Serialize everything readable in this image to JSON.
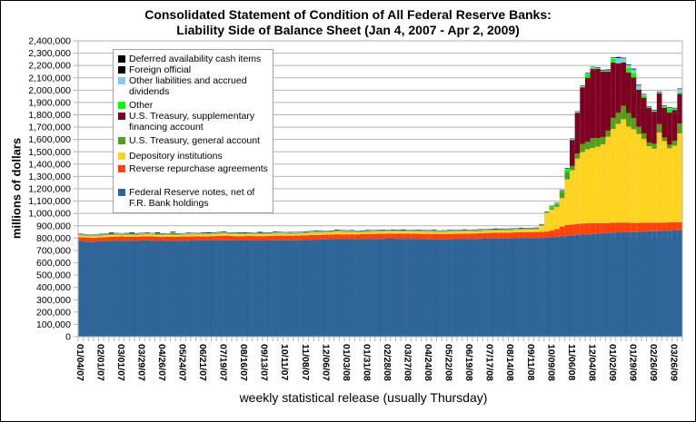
{
  "chart_data": {
    "type": "bar",
    "stacked": true,
    "title": "Consolidated Statement of Condition of All Federal Reserve Banks:",
    "subtitle": "Liability Side of Balance Sheet (Jan 4, 2007 - Apr 2, 2009)",
    "xlabel": "weekly statistical release (usually Thursday)",
    "ylabel": "millions of dollars",
    "ylim": [
      0,
      2400000
    ],
    "ytick_step": 100000,
    "yticks": [
      "0",
      "100,000",
      "200,000",
      "300,000",
      "400,000",
      "500,000",
      "600,000",
      "700,000",
      "800,000",
      "900,000",
      "1,000,000",
      "1,100,000",
      "1,200,000",
      "1,300,000",
      "1,400,000",
      "1,500,000",
      "1,600,000",
      "1,700,000",
      "1,800,000",
      "1,900,000",
      "2,000,000",
      "2,100,000",
      "2,200,000",
      "2,300,000",
      "2,400,000"
    ],
    "grid": true,
    "legend_position": "top-left",
    "xtick_labels": [
      "01/04/07",
      "02/01/07",
      "03/01/07",
      "03/29/07",
      "04/26/07",
      "05/24/07",
      "06/21/07",
      "07/19/07",
      "08/16/07",
      "09/13/07",
      "10/11/07",
      "11/08/07",
      "12/06/07",
      "01/03/08",
      "01/31/08",
      "02/28/08",
      "03/27/08",
      "04/24/08",
      "05/22/08",
      "06/19/08",
      "07/17/08",
      "08/14/08",
      "09/11/08",
      "10/09/08",
      "11/06/08",
      "12/04/08",
      "01/02/09",
      "01/29/09",
      "02/26/09",
      "03/26/09"
    ],
    "xtick_every": 4,
    "n_weeks": 118,
    "series": [
      {
        "name": "Federal Reserve notes, net of F.R. Bank holdings",
        "color": "#2f6699",
        "values": [
          777000,
          772000,
          768000,
          770000,
          774000,
          775000,
          776000,
          777000,
          778000,
          778000,
          778000,
          779000,
          780000,
          781000,
          779000,
          777000,
          777000,
          776000,
          777000,
          776000,
          778000,
          779000,
          780000,
          781000,
          780000,
          780000,
          781000,
          782000,
          783000,
          782000,
          781000,
          780000,
          781000,
          781000,
          780000,
          780000,
          780000,
          781000,
          782000,
          783000,
          782000,
          782000,
          782000,
          783000,
          784000,
          786000,
          787000,
          788000,
          790000,
          792000,
          792000,
          791000,
          791000,
          791000,
          790000,
          791000,
          792000,
          793000,
          793000,
          793000,
          795000,
          795000,
          794000,
          794000,
          794000,
          793000,
          792000,
          791000,
          790000,
          790000,
          789000,
          789000,
          790000,
          791000,
          791000,
          792000,
          792000,
          793000,
          794000,
          795000,
          796000,
          797000,
          797000,
          798000,
          798000,
          799000,
          800000,
          800000,
          800000,
          800000,
          801000,
          803000,
          806000,
          809000,
          814000,
          818000,
          822000,
          826000,
          828000,
          830000,
          833000,
          836000,
          838000,
          842000,
          845000,
          847000,
          847000,
          848000,
          849000,
          851000,
          853000,
          855000,
          856000,
          857000,
          858000,
          860000,
          862000,
          863000
        ]
      },
      {
        "name": "Reverse repurchase agreements",
        "color": "#ff420e",
        "values": [
          30000,
          33000,
          34000,
          32000,
          32000,
          33000,
          34000,
          35000,
          35000,
          34000,
          34000,
          33000,
          34000,
          34000,
          35000,
          34000,
          33000,
          34000,
          34000,
          35000,
          35000,
          34000,
          34000,
          34000,
          33000,
          34000,
          35000,
          36000,
          36000,
          36000,
          35000,
          35000,
          35000,
          36000,
          36000,
          36000,
          36000,
          36000,
          37000,
          37000,
          37000,
          37000,
          38000,
          38000,
          38000,
          39000,
          38000,
          38000,
          38000,
          38000,
          39000,
          39000,
          40000,
          40000,
          40000,
          41000,
          41000,
          41000,
          42000,
          42000,
          42000,
          42000,
          43000,
          43000,
          43000,
          43000,
          43000,
          43000,
          44000,
          44000,
          44000,
          44000,
          44000,
          44000,
          44000,
          45000,
          45000,
          45000,
          45000,
          46000,
          46000,
          46000,
          47000,
          47000,
          47000,
          48000,
          48000,
          48000,
          49000,
          49000,
          49000,
          50000,
          55000,
          65000,
          80000,
          88000,
          88000,
          89000,
          90000,
          90000,
          88000,
          86000,
          82000,
          80000,
          80000,
          79000,
          77000,
          76000,
          74000,
          72000,
          71000,
          70000,
          69000,
          68000,
          68000,
          68000,
          67000,
          66000
        ]
      },
      {
        "name": "Depository institutions",
        "color": "#ffd320",
        "values": [
          16000,
          14000,
          14000,
          13000,
          14000,
          15000,
          15000,
          16000,
          15000,
          15000,
          14000,
          15000,
          15000,
          16000,
          15000,
          16000,
          16000,
          15000,
          16000,
          15000,
          15000,
          16000,
          15000,
          16000,
          16000,
          16000,
          17000,
          17000,
          18000,
          16000,
          17000,
          17000,
          16000,
          16000,
          15000,
          16000,
          16000,
          16000,
          17000,
          17000,
          17000,
          16000,
          16000,
          16000,
          17000,
          19000,
          19000,
          18000,
          18000,
          17000,
          22000,
          21000,
          19000,
          19000,
          18000,
          17000,
          17000,
          17000,
          18000,
          18000,
          18000,
          18000,
          17000,
          17000,
          17000,
          17000,
          18000,
          18000,
          17000,
          17000,
          17000,
          17000,
          18000,
          18000,
          18000,
          18000,
          18000,
          18000,
          18000,
          18000,
          19000,
          19000,
          19000,
          19000,
          19000,
          19000,
          19000,
          20000,
          20000,
          22000,
          50000,
          150000,
          170000,
          180000,
          230000,
          370000,
          440000,
          530000,
          580000,
          600000,
          610000,
          620000,
          640000,
          700000,
          760000,
          800000,
          840000,
          780000,
          760000,
          720000,
          680000,
          620000,
          600000,
          730000,
          660000,
          600000,
          620000,
          720000,
          820000,
          860000
        ]
      },
      {
        "name": "U.S. Treasury, general account",
        "color": "#579d1c",
        "values": [
          5000,
          5000,
          5000,
          5000,
          5000,
          5000,
          5000,
          5000,
          5000,
          5000,
          5000,
          5000,
          5000,
          5000,
          5000,
          5000,
          5000,
          5000,
          16000,
          5000,
          5000,
          5000,
          5000,
          5000,
          5000,
          5000,
          5000,
          5000,
          5000,
          5000,
          5000,
          5000,
          5000,
          5000,
          5000,
          5000,
          5000,
          5000,
          5000,
          5000,
          5000,
          5000,
          5000,
          5000,
          5000,
          5000,
          5000,
          5000,
          5000,
          5000,
          5000,
          5000,
          5000,
          5000,
          5000,
          5000,
          5000,
          5000,
          5000,
          5000,
          5000,
          5000,
          5000,
          5000,
          5000,
          5000,
          5000,
          5000,
          5000,
          5000,
          5000,
          5000,
          5000,
          5000,
          5000,
          5000,
          5000,
          5000,
          5000,
          5000,
          5000,
          5000,
          5000,
          5000,
          5000,
          5000,
          5000,
          5000,
          5000,
          5000,
          5000,
          5000,
          10000,
          20000,
          50000,
          60000,
          35000,
          40000,
          65000,
          60000,
          80000,
          70000,
          60000,
          50000,
          90000,
          90000,
          110000,
          110000,
          90000,
          60000,
          45000,
          30000,
          40000,
          70000,
          30000,
          30000,
          40000,
          80000,
          60000,
          70000
        ]
      },
      {
        "name": "U.S. Treasury, supplementary financing account",
        "color": "#7e0021",
        "values": [
          0,
          0,
          0,
          0,
          0,
          0,
          0,
          0,
          0,
          0,
          0,
          0,
          0,
          0,
          0,
          0,
          0,
          0,
          0,
          0,
          0,
          0,
          0,
          0,
          0,
          0,
          0,
          0,
          0,
          0,
          0,
          0,
          0,
          0,
          0,
          0,
          0,
          0,
          0,
          0,
          0,
          0,
          0,
          0,
          0,
          0,
          0,
          0,
          0,
          0,
          0,
          0,
          0,
          0,
          0,
          0,
          0,
          0,
          0,
          0,
          0,
          0,
          0,
          0,
          0,
          0,
          0,
          0,
          0,
          0,
          0,
          0,
          0,
          0,
          0,
          0,
          0,
          0,
          0,
          0,
          0,
          0,
          0,
          0,
          0,
          0,
          0,
          0,
          0,
          0,
          0,
          0,
          0,
          0,
          0,
          0,
          210000,
          330000,
          460000,
          520000,
          560000,
          560000,
          530000,
          480000,
          450000,
          400000,
          350000,
          330000,
          330000,
          300000,
          290000,
          280000,
          260000,
          250000,
          240000,
          260000,
          250000,
          240000,
          230000,
          220000,
          210000,
          200000
        ]
      },
      {
        "name": "Other",
        "color": "#00ff00",
        "values": [
          0,
          0,
          0,
          0,
          0,
          0,
          0,
          0,
          0,
          0,
          0,
          0,
          0,
          0,
          0,
          0,
          0,
          0,
          0,
          0,
          0,
          0,
          0,
          0,
          0,
          0,
          0,
          0,
          0,
          0,
          0,
          0,
          0,
          0,
          0,
          0,
          0,
          0,
          0,
          0,
          0,
          0,
          0,
          0,
          0,
          0,
          0,
          0,
          0,
          0,
          0,
          0,
          0,
          0,
          0,
          0,
          0,
          0,
          0,
          0,
          0,
          0,
          0,
          0,
          0,
          0,
          0,
          0,
          0,
          0,
          0,
          0,
          0,
          0,
          0,
          0,
          0,
          0,
          0,
          0,
          0,
          0,
          0,
          0,
          0,
          0,
          0,
          0,
          0,
          0,
          0,
          0,
          12000,
          5000,
          4000,
          22000,
          4000,
          4000,
          4000,
          28000,
          10000,
          4000,
          4000,
          4000,
          30000,
          5000,
          5000,
          40000,
          35000,
          5000,
          15000,
          4000,
          4000,
          4000,
          10000,
          30000,
          5000,
          10000,
          20000,
          15000,
          10000,
          10000
        ]
      },
      {
        "name": "Other liabilities and accrued dividends",
        "color": "#83caff",
        "values": [
          5000,
          5000,
          5000,
          5000,
          5000,
          5000,
          5000,
          5000,
          5000,
          5000,
          5000,
          5000,
          5000,
          5000,
          5000,
          5000,
          5000,
          5000,
          5000,
          5000,
          5000,
          5000,
          5000,
          5000,
          5000,
          5000,
          5000,
          5000,
          5000,
          5000,
          5000,
          5000,
          5000,
          5000,
          5000,
          5000,
          5000,
          5000,
          5000,
          5000,
          5000,
          5000,
          5000,
          5000,
          5000,
          5000,
          5000,
          5000,
          5000,
          5000,
          5000,
          5000,
          5000,
          5000,
          5000,
          5000,
          5000,
          5000,
          5000,
          5000,
          5000,
          5000,
          5000,
          5000,
          5000,
          5000,
          5000,
          5000,
          5000,
          5000,
          5000,
          5000,
          5000,
          5000,
          5000,
          5000,
          5000,
          5000,
          5000,
          5000,
          5000,
          5000,
          5000,
          5000,
          5000,
          5000,
          5000,
          5000,
          5000,
          5000,
          5000,
          5000,
          5000,
          5000,
          5000,
          6000,
          6000,
          6000,
          6000,
          6000,
          6000,
          6000,
          6000,
          6000,
          6000,
          40000,
          30000,
          20000,
          30000,
          30000,
          10000,
          5000,
          5000,
          6000,
          6000,
          8000,
          8000,
          30000,
          6000,
          6000,
          6000,
          6000
        ]
      },
      {
        "name": "Foreign official",
        "color": "#000000",
        "values": [
          300,
          300,
          300,
          300,
          300,
          300,
          4000,
          300,
          300,
          300,
          4000,
          300,
          300,
          300,
          300,
          4000,
          300,
          300,
          300,
          300,
          300,
          300,
          300,
          300,
          300,
          4000,
          300,
          300,
          300,
          300,
          300,
          300,
          300,
          300,
          300,
          4000,
          300,
          300,
          300,
          300,
          300,
          300,
          300,
          300,
          300,
          300,
          300,
          300,
          300,
          300,
          300,
          300,
          300,
          300,
          300,
          300,
          300,
          300,
          300,
          300,
          300,
          300,
          300,
          300,
          300,
          300,
          300,
          300,
          300,
          300,
          300,
          300,
          300,
          300,
          300,
          300,
          300,
          300,
          300,
          300,
          300,
          300,
          300,
          300,
          300,
          300,
          300,
          300,
          300,
          300,
          300,
          300,
          300,
          300,
          300,
          300,
          300,
          300,
          300,
          300,
          300,
          300,
          300,
          300,
          300,
          300,
          300,
          300,
          300,
          300,
          300,
          300,
          300,
          300,
          300,
          300,
          300,
          300,
          300,
          300
        ]
      },
      {
        "name": "Deferred availability cash items",
        "color": "#000000",
        "values": [
          3000,
          2000,
          2000,
          3000,
          4000,
          3000,
          5000,
          3000,
          2000,
          4000,
          5000,
          3000,
          3000,
          4000,
          2000,
          5000,
          3000,
          2000,
          4000,
          3000,
          2000,
          4000,
          3000,
          2000,
          5000,
          3000,
          3000,
          4000,
          5000,
          2000,
          3000,
          4000,
          5000,
          3000,
          2000,
          4000,
          3000,
          3000,
          5000,
          3000,
          2000,
          4000,
          3000,
          3000,
          4000,
          3000,
          5000,
          4000,
          2000,
          3000,
          5000,
          3000,
          3000,
          4000,
          2000,
          3000,
          5000,
          3000,
          3000,
          4000,
          2000,
          4000,
          3000,
          5000,
          2000,
          3000,
          4000,
          3000,
          3000,
          5000,
          2000,
          3000,
          4000,
          3000,
          3000,
          5000,
          2000,
          3000,
          4000,
          3000,
          3000,
          5000,
          4000,
          3000,
          4000,
          3000,
          5000,
          3000,
          3000,
          4000,
          3000,
          3000,
          4000,
          3000,
          5000,
          4000,
          3000,
          3000,
          4000,
          5000,
          3000,
          4000,
          5000,
          6000,
          4000,
          8000,
          4000,
          5000,
          6000,
          5000,
          4000,
          4000,
          5000,
          4000,
          4000,
          5000,
          4000,
          4000,
          5000,
          4000,
          6000,
          5000
        ]
      }
    ]
  }
}
